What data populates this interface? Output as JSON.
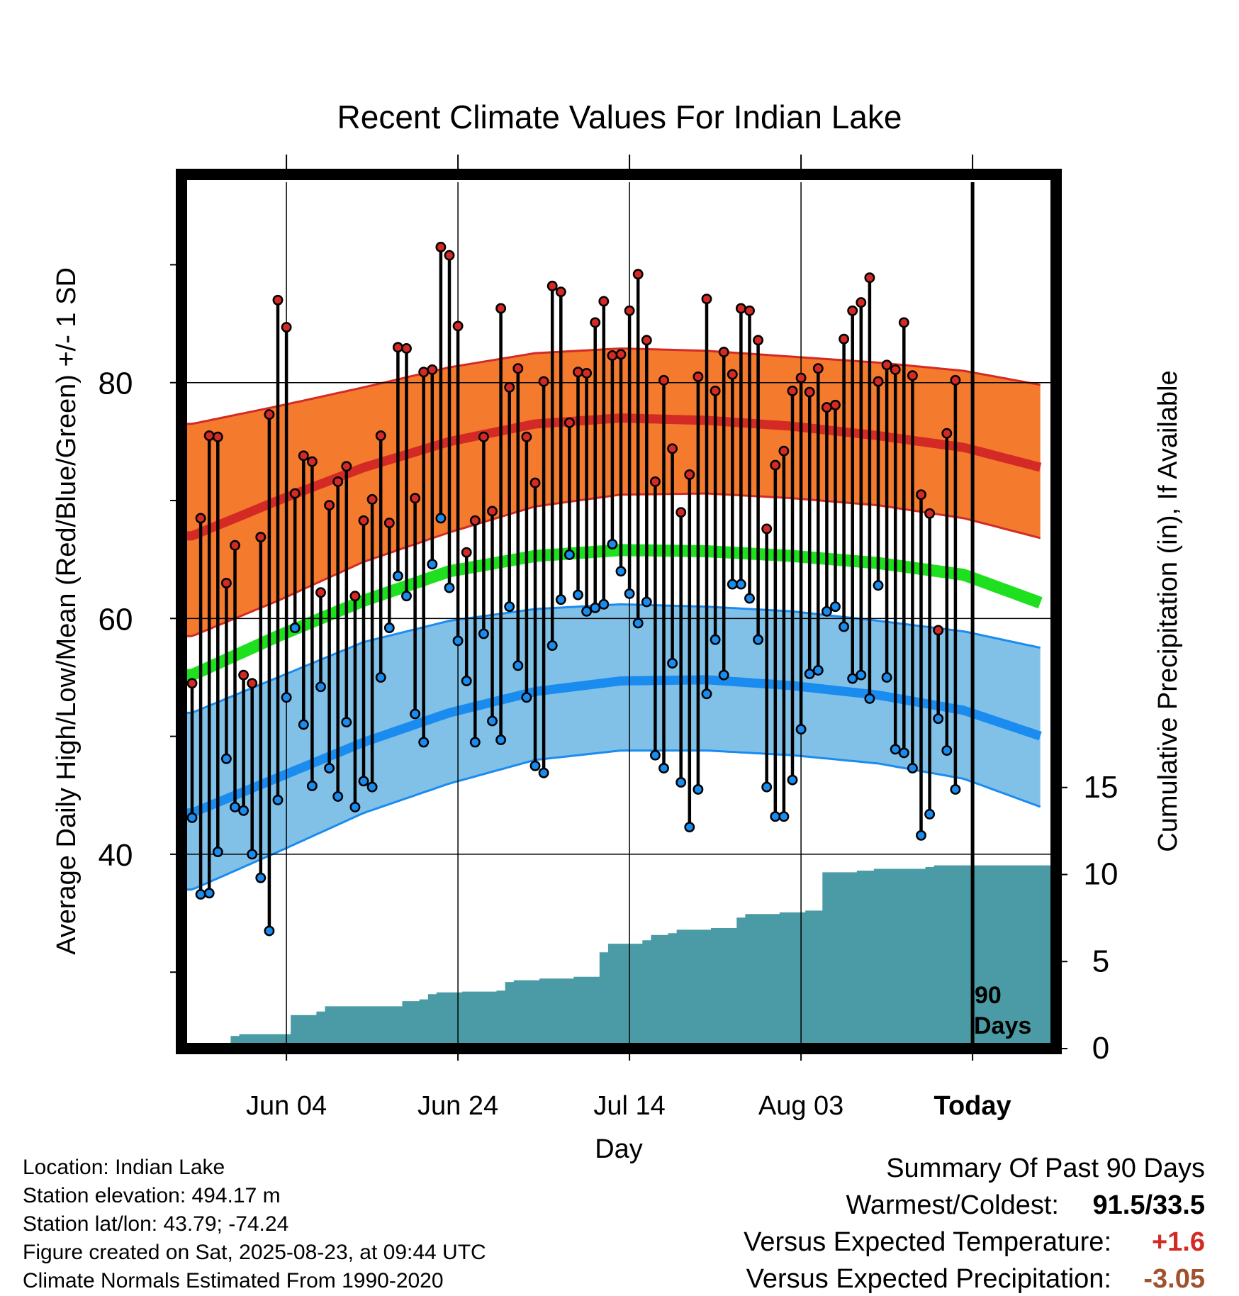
{
  "chart_data": {
    "type": "line",
    "title": "Recent Climate Values For Indian Lake",
    "xlabel": "Day",
    "ylabel": "Average Daily High/Low/Mean (Red/Blue/Green) +/- 1 SD",
    "y2label": "Cumulative Precipitation (in), If Available",
    "xtick_labels": [
      "Jun 04",
      "Jun 24",
      "Jul 14",
      "Aug 03",
      "Today"
    ],
    "ytick_labels": [
      "40",
      "60",
      "80"
    ],
    "y2tick_labels": [
      "0",
      "5",
      "10",
      "15"
    ],
    "ylim": [
      24,
      97
    ],
    "y2lim": [
      0,
      50
    ],
    "today_label": "90\nDays",
    "today_label_lines": [
      "90",
      "Days"
    ],
    "start_date": "2025-05-24",
    "grid": true,
    "colors": {
      "high_band": "#f47a2e",
      "high_line": "#d42a25",
      "mean_line": "#1ee01e",
      "low_band": "#82c1e7",
      "low_line": "#1a8cf0",
      "precip": "#4a9ba5",
      "high_dot": "#d42a25",
      "low_dot": "#1a8cf0"
    },
    "normals": {
      "x": [
        0,
        10,
        20,
        30,
        40,
        50,
        60,
        70,
        80,
        90,
        99
      ],
      "high_mean": [
        67.0,
        70.0,
        72.8,
        75.0,
        76.5,
        77.0,
        76.8,
        76.3,
        75.5,
        74.5,
        72.8
      ],
      "high_upper": [
        76.5,
        78.0,
        79.6,
        81.3,
        82.5,
        82.9,
        82.7,
        82.2,
        81.7,
        81.0,
        79.8
      ],
      "high_lower": [
        58.5,
        61.5,
        64.8,
        67.3,
        69.5,
        70.5,
        70.6,
        70.2,
        69.6,
        68.5,
        66.8
      ],
      "mean": [
        55.2,
        58.5,
        61.5,
        64.0,
        65.3,
        65.8,
        65.7,
        65.3,
        64.7,
        63.7,
        61.3
      ],
      "low_mean": [
        43.5,
        46.5,
        49.5,
        52.0,
        53.8,
        54.7,
        54.8,
        54.3,
        53.5,
        52.2,
        50.0
      ],
      "low_upper": [
        52.0,
        55.0,
        58.0,
        59.8,
        60.8,
        61.2,
        61.0,
        60.6,
        59.8,
        58.9,
        57.5
      ],
      "low_lower": [
        37.0,
        40.2,
        43.5,
        46.0,
        48.0,
        48.8,
        48.8,
        48.4,
        47.7,
        46.4,
        44.0
      ]
    },
    "daily": {
      "x": [
        0,
        1,
        2,
        3,
        4,
        5,
        6,
        7,
        8,
        9,
        10,
        11,
        12,
        13,
        14,
        15,
        16,
        17,
        18,
        19,
        20,
        21,
        22,
        23,
        24,
        25,
        26,
        27,
        28,
        29,
        30,
        31,
        32,
        33,
        34,
        35,
        36,
        37,
        38,
        39,
        40,
        41,
        42,
        43,
        44,
        45,
        46,
        47,
        48,
        49,
        50,
        51,
        52,
        53,
        54,
        55,
        56,
        57,
        58,
        59,
        60,
        61,
        62,
        63,
        64,
        65,
        66,
        67,
        68,
        69,
        70,
        71,
        72,
        73,
        74,
        75,
        76,
        77,
        78,
        79,
        80,
        81,
        82,
        83,
        84,
        85,
        86,
        87,
        88,
        89
      ],
      "high": [
        54.5,
        68.5,
        75.5,
        75.4,
        63.0,
        66.2,
        55.2,
        54.5,
        66.9,
        77.3,
        87.0,
        84.7,
        70.6,
        73.8,
        73.3,
        62.2,
        69.6,
        71.6,
        72.9,
        61.9,
        68.3,
        70.1,
        75.5,
        68.1,
        83.0,
        82.9,
        70.2,
        80.9,
        81.1,
        91.5,
        90.8,
        84.8,
        65.6,
        68.3,
        75.4,
        69.1,
        86.3,
        79.6,
        81.2,
        75.4,
        71.5,
        80.1,
        88.2,
        87.7,
        76.6,
        80.9,
        80.8,
        85.1,
        86.9,
        82.3,
        82.4,
        86.1,
        89.2,
        83.6,
        71.6,
        80.2,
        74.4,
        69.0,
        72.2,
        80.5,
        87.1,
        79.3,
        82.6,
        80.7,
        86.3,
        86.1,
        83.6,
        67.6,
        73.0,
        74.2,
        79.3,
        80.4,
        79.2,
        81.2,
        77.9,
        78.1,
        83.7,
        86.1,
        86.8,
        88.9,
        80.1,
        81.5,
        81.1,
        85.1,
        80.6,
        70.5,
        68.9,
        59.0,
        75.7,
        80.2
      ],
      "low": [
        43.1,
        36.6,
        36.7,
        40.2,
        48.1,
        44.0,
        43.7,
        40.0,
        38.0,
        33.5,
        44.6,
        53.3,
        59.2,
        51.0,
        45.8,
        54.2,
        47.3,
        44.9,
        51.2,
        44.0,
        46.2,
        45.7,
        55.0,
        59.2,
        63.6,
        61.9,
        51.9,
        49.5,
        64.6,
        68.5,
        62.6,
        58.1,
        54.7,
        49.5,
        58.7,
        51.3,
        49.7,
        61.0,
        56.0,
        53.3,
        47.5,
        46.9,
        57.7,
        61.6,
        65.4,
        62.0,
        60.6,
        60.9,
        61.2,
        66.3,
        64.0,
        62.1,
        59.6,
        61.4,
        48.4,
        47.3,
        56.2,
        46.1,
        42.3,
        45.5,
        53.6,
        58.2,
        55.2,
        62.9,
        62.9,
        61.7,
        58.2,
        45.7,
        43.2,
        43.2,
        46.3,
        50.6,
        55.3,
        55.6,
        60.6,
        61.0,
        59.3,
        54.9,
        55.2,
        53.2,
        62.8,
        55.0,
        48.9,
        48.6,
        47.3,
        41.6,
        43.4,
        51.5,
        48.8,
        45.5
      ]
    },
    "precip": {
      "x": [
        0,
        4,
        5,
        6,
        7,
        8,
        9,
        10,
        11,
        12,
        13,
        14,
        15,
        16,
        17,
        20,
        21,
        22,
        23,
        24,
        25,
        26,
        27,
        28,
        29,
        30,
        32,
        33,
        34,
        35,
        36,
        37,
        38,
        39,
        40,
        41,
        42,
        43,
        44,
        45,
        46,
        47,
        48,
        49,
        50,
        51,
        52,
        53,
        54,
        55,
        56,
        57,
        58,
        59,
        60,
        61,
        62,
        63,
        64,
        65,
        66,
        67,
        68,
        69,
        70,
        71,
        72,
        73,
        74,
        75,
        76,
        77,
        78,
        79,
        80,
        81,
        82,
        83,
        84,
        85,
        86,
        87,
        88,
        89,
        90,
        99
      ],
      "cum": [
        0,
        0,
        0.4,
        0.5,
        0.5,
        0.5,
        0.5,
        0.5,
        0.5,
        1.6,
        1.6,
        1.6,
        1.8,
        2.1,
        2.1,
        2.1,
        2.1,
        2.1,
        2.1,
        2.1,
        2.4,
        2.4,
        2.5,
        2.8,
        2.9,
        2.9,
        2.95,
        2.95,
        2.95,
        2.95,
        3.0,
        3.5,
        3.6,
        3.6,
        3.6,
        3.7,
        3.7,
        3.7,
        3.7,
        3.8,
        3.8,
        3.8,
        5.2,
        5.7,
        5.7,
        5.7,
        5.7,
        5.9,
        6.2,
        6.2,
        6.3,
        6.5,
        6.5,
        6.5,
        6.5,
        6.6,
        6.6,
        6.6,
        7.2,
        7.4,
        7.4,
        7.4,
        7.4,
        7.5,
        7.5,
        7.5,
        7.6,
        7.6,
        9.8,
        9.8,
        9.8,
        9.8,
        9.9,
        9.9,
        10.0,
        10.0,
        10.0,
        10.0,
        10.0,
        10.0,
        10.1,
        10.2,
        10.2,
        10.2,
        10.2,
        10.2
      ]
    },
    "today_x": 90
  },
  "info": {
    "location": "Location: Indian Lake",
    "elevation": "Station elevation: 494.17 m",
    "latlon": "Station lat/lon: 43.79; -74.24",
    "created": "Figure created on Sat, 2025-08-23, at 09:44 UTC",
    "normals": "Climate Normals Estimated From 1990-2020"
  },
  "summary": {
    "title": "Summary Of Past 90 Days",
    "warm_cold_label": "Warmest/Coldest:",
    "warm_cold_value": "91.5/33.5",
    "temp_label": "Versus Expected Temperature:",
    "temp_value": "+1.6",
    "temp_color": "#d42a25",
    "precip_label": "Versus Expected Precipitation:",
    "precip_value": "-3.05",
    "precip_color": "#a0522d"
  }
}
